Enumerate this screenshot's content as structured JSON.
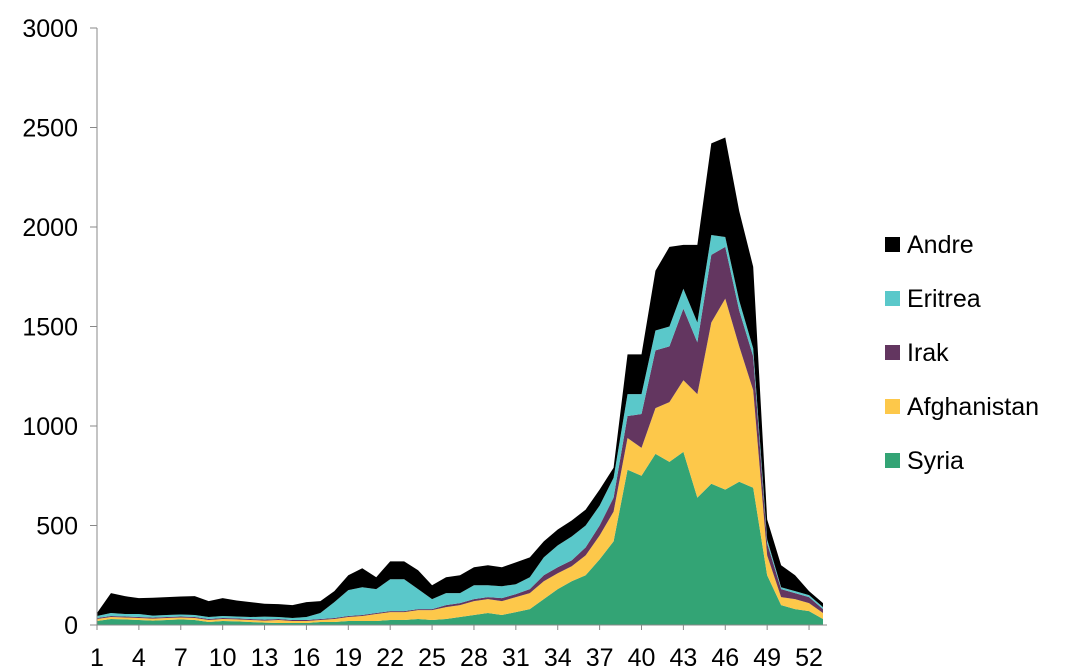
{
  "chart_data": {
    "type": "area",
    "stacked": true,
    "x": [
      1,
      2,
      3,
      4,
      5,
      6,
      7,
      8,
      9,
      10,
      11,
      12,
      13,
      14,
      15,
      16,
      17,
      18,
      19,
      20,
      21,
      22,
      23,
      24,
      25,
      26,
      27,
      28,
      29,
      30,
      31,
      32,
      33,
      34,
      35,
      36,
      37,
      38,
      39,
      40,
      41,
      42,
      43,
      44,
      45,
      46,
      47,
      48,
      49,
      50,
      51,
      52,
      53
    ],
    "x_tick_labels": [
      "1",
      "4",
      "7",
      "10",
      "13",
      "16",
      "19",
      "22",
      "25",
      "28",
      "31",
      "34",
      "37",
      "40",
      "43",
      "46",
      "49",
      "52"
    ],
    "ylim": [
      0,
      3000
    ],
    "y_tick_labels": [
      "0",
      "500",
      "1000",
      "1500",
      "2000",
      "2500",
      "3000"
    ],
    "title": "",
    "xlabel": "",
    "ylabel": "",
    "legend_position": "right",
    "grid": false,
    "series": [
      {
        "name": "Syria",
        "color": "#33a475",
        "values": [
          20,
          30,
          28,
          25,
          22,
          25,
          28,
          25,
          15,
          20,
          18,
          15,
          12,
          10,
          10,
          10,
          15,
          15,
          20,
          20,
          20,
          25,
          25,
          30,
          25,
          30,
          40,
          50,
          60,
          50,
          65,
          80,
          130,
          180,
          220,
          250,
          330,
          420,
          780,
          750,
          860,
          820,
          870,
          640,
          710,
          680,
          720,
          690,
          250,
          100,
          80,
          70,
          30
        ]
      },
      {
        "name": "Afghanistan",
        "color": "#fdc84a",
        "values": [
          10,
          10,
          10,
          10,
          10,
          10,
          10,
          10,
          10,
          10,
          10,
          10,
          10,
          15,
          10,
          10,
          10,
          15,
          20,
          25,
          35,
          40,
          40,
          45,
          50,
          60,
          60,
          70,
          70,
          70,
          75,
          80,
          90,
          80,
          75,
          100,
          120,
          150,
          160,
          140,
          230,
          300,
          360,
          520,
          810,
          960,
          680,
          490,
          100,
          40,
          50,
          40,
          30
        ]
      },
      {
        "name": "Irak",
        "color": "#633660",
        "values": [
          5,
          5,
          5,
          5,
          5,
          5,
          5,
          5,
          5,
          5,
          5,
          5,
          5,
          5,
          5,
          5,
          5,
          5,
          5,
          5,
          5,
          5,
          5,
          5,
          5,
          10,
          10,
          10,
          10,
          15,
          15,
          20,
          30,
          30,
          30,
          40,
          50,
          70,
          110,
          170,
          290,
          280,
          360,
          260,
          340,
          260,
          180,
          170,
          60,
          40,
          30,
          30,
          20
        ]
      },
      {
        "name": "Eritrea",
        "color": "#5ac8ca",
        "values": [
          10,
          15,
          12,
          15,
          10,
          10,
          10,
          10,
          10,
          10,
          10,
          10,
          15,
          10,
          10,
          15,
          30,
          80,
          130,
          140,
          120,
          160,
          160,
          100,
          50,
          60,
          50,
          70,
          60,
          60,
          50,
          60,
          90,
          110,
          120,
          110,
          100,
          100,
          110,
          100,
          100,
          100,
          100,
          100,
          100,
          50,
          50,
          40,
          20,
          10,
          10,
          10,
          10
        ]
      },
      {
        "name": "Andre",
        "color": "#000000",
        "values": [
          15,
          100,
          90,
          80,
          90,
          90,
          90,
          95,
          80,
          90,
          80,
          75,
          65,
          65,
          65,
          75,
          60,
          55,
          75,
          95,
          60,
          90,
          90,
          95,
          70,
          80,
          90,
          90,
          100,
          95,
          110,
          100,
          80,
          80,
          80,
          80,
          80,
          50,
          200,
          200,
          300,
          400,
          220,
          390,
          460,
          500,
          450,
          410,
          100,
          110,
          80,
          20,
          20
        ]
      }
    ]
  }
}
